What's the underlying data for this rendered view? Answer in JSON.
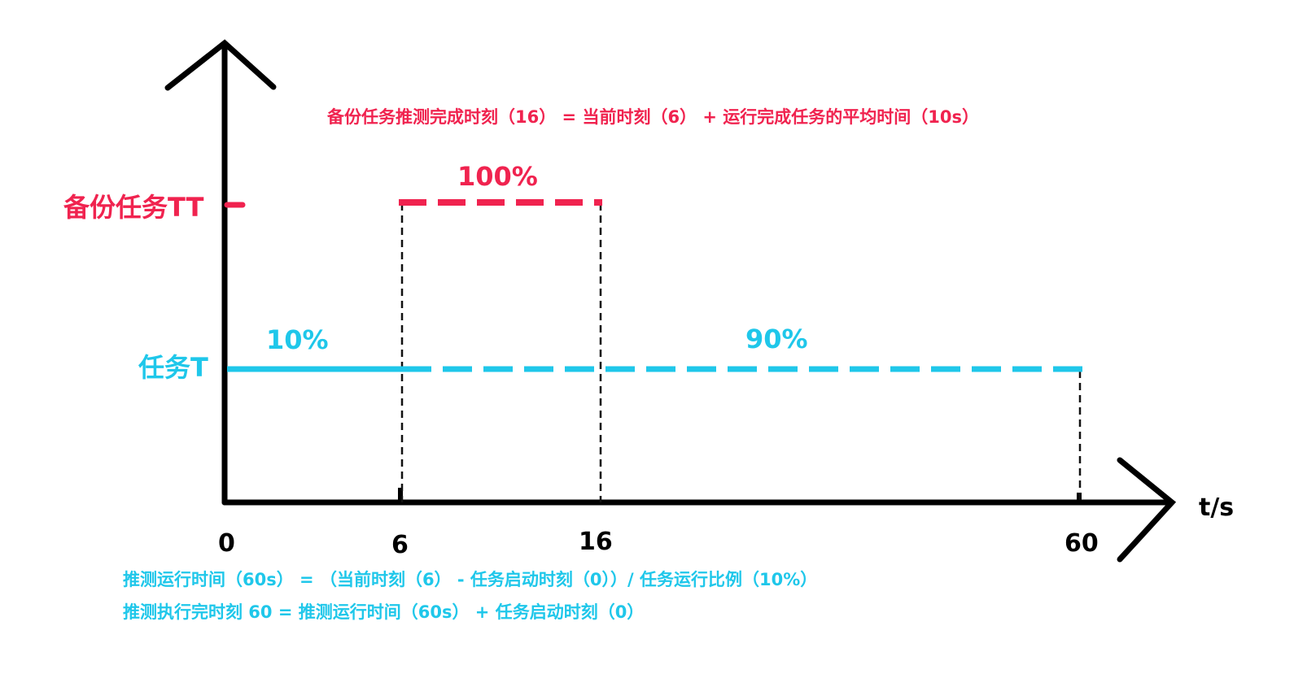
{
  "colors": {
    "backup": "#f0234f",
    "task": "#1fc7ea",
    "axis": "#000000",
    "guide": "#111111"
  },
  "formula_top": "备份任务推测完成时刻（16） = 当前时刻（6） + 运行完成任务的平均时间（10s）",
  "labels": {
    "backup_task": "备份任务TT",
    "task": "任务T",
    "backup_percent": "100%",
    "task_done_percent": "10%",
    "task_remaining_percent": "90%",
    "x_unit": "t/s"
  },
  "x_ticks": [
    "0",
    "6",
    "16",
    "60"
  ],
  "formula_bottom": [
    "推测运行时间（60s） = （当前时刻（6） - 任务启动时刻（0））/ 任务运行比例（10%）",
    "推测执行完时刻 60  =   推测运行时间（60s）  +  任务启动时刻（0）"
  ]
}
